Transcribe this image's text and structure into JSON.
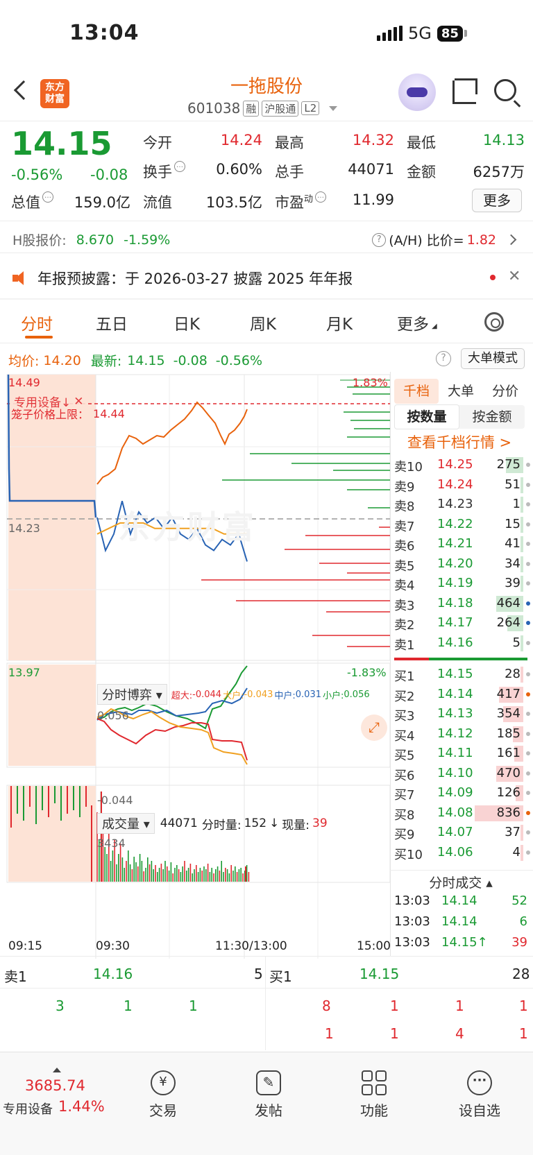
{
  "status": {
    "time": "13:04",
    "network": "5G",
    "battery": "85"
  },
  "header": {
    "logo_line1": "东方",
    "logo_line2": "财富",
    "name": "一拖股份",
    "code": "601038",
    "tags": [
      "融",
      "沪股通",
      "L2"
    ]
  },
  "quote": {
    "price": "14.15",
    "pct": "-0.56%",
    "chg": "-0.08",
    "open_label": "今开",
    "open": "14.24",
    "high_label": "最高",
    "high": "14.32",
    "low_label": "最低",
    "low": "14.13",
    "turnover_label": "换手",
    "turnover": "0.60%",
    "volume_label": "总手",
    "volume": "44071",
    "amount_label": "金额",
    "amount": "6257万",
    "mktcap_label": "总值",
    "mktcap": "159.0亿",
    "float_label": "流值",
    "float": "103.5亿",
    "pe_label": "市盈",
    "pe_sup": "动",
    "pe": "11.99",
    "more": "更多"
  },
  "hshare": {
    "label": "H股报价:",
    "price": "8.670",
    "pct": "-1.59%",
    "ah_label": "(A/H) 比价=",
    "ah_value": "1.82"
  },
  "notice": {
    "text": "年报预披露：于 2026-03-27 披露 2025 年年报",
    "close": "✕"
  },
  "tabs": [
    "分时",
    "五日",
    "日K",
    "周K",
    "月K",
    "更多"
  ],
  "avg_row": {
    "avg_label": "均价:",
    "avg": "14.20",
    "latest_label": "最新:",
    "latest": "14.15",
    "chg": "-0.08",
    "pct": "-0.56%",
    "help": "?",
    "big_order": "大单模式"
  },
  "chart": {
    "top_price": "14.49",
    "mid_price": "14.23",
    "bottom_price": "13.97",
    "top_pct": "1.83%",
    "bottom_pct": "-1.83%",
    "sector_tag": "专用设备↓",
    "sector_close": "✕",
    "limit_label": "笼子价格上限：",
    "limit_value": "14.44",
    "watermark": "东方财富",
    "bout_title": "分时博弈",
    "bout_super_label": "超大:",
    "bout_super": "-0.044",
    "bout_big_label": "大户:",
    "bout_big": "-0.043",
    "bout_mid_label": "中户:",
    "bout_mid": "0.031",
    "bout_small_label": "小户:",
    "bout_small": "0.056",
    "bout_top": "0.056",
    "bout_bottom": "-0.044",
    "vol_title": "成交量",
    "vol_total": "44071",
    "vol_min_label": "分时量:",
    "vol_min": "152",
    "vol_arrow": "↓",
    "vol_now_label": "现量:",
    "vol_now": "39",
    "vol_max": "3434",
    "times": [
      "09:15",
      "09:30",
      "11:30/13:00",
      "15:00"
    ]
  },
  "chart_data": {
    "type": "line",
    "series": [
      {
        "name": "",
        "values": [
          14.23,
          14.17,
          14.2,
          14.26,
          14.2,
          14.24,
          14.22,
          14.23,
          14.21,
          14.23,
          14.2,
          14.19,
          14.21,
          14.18,
          14.17,
          14.19,
          14.18,
          14.2,
          14.15
        ]
      },
      {
        "name": "",
        "values": [
          14.2,
          14.21,
          14.22,
          14.22,
          14.22,
          14.21,
          14.21,
          14.21,
          14.21,
          14.21,
          14.21,
          14.2,
          14.2,
          14.2
        ]
      }
    ],
    "ylim": [
      13.97,
      14.49
    ]
  },
  "orderbook": {
    "tabs": [
      "千档",
      "大单",
      "分价"
    ],
    "modes": [
      "按数量",
      "按金额"
    ],
    "link": "查看千档行情 >",
    "sell": [
      {
        "lv": "卖10",
        "p": "14.25",
        "q": "275",
        "c": "red",
        "frac": 0.35,
        "dot": "#bbb"
      },
      {
        "lv": "卖9",
        "p": "14.24",
        "q": "51",
        "c": "red",
        "frac": 0.06,
        "dot": "#bbb"
      },
      {
        "lv": "卖8",
        "p": "14.23",
        "q": "1",
        "c": "gray",
        "frac": 0.01,
        "dot": "#bbb"
      },
      {
        "lv": "卖7",
        "p": "14.22",
        "q": "15",
        "c": "green",
        "frac": 0.02,
        "dot": "#bbb"
      },
      {
        "lv": "卖6",
        "p": "14.21",
        "q": "41",
        "c": "green",
        "frac": 0.05,
        "dot": "#bbb"
      },
      {
        "lv": "卖5",
        "p": "14.20",
        "q": "34",
        "c": "green",
        "frac": 0.04,
        "dot": "#bbb"
      },
      {
        "lv": "卖4",
        "p": "14.19",
        "q": "39",
        "c": "green",
        "frac": 0.05,
        "dot": "#bbb"
      },
      {
        "lv": "卖3",
        "p": "14.18",
        "q": "464",
        "c": "green",
        "frac": 0.55,
        "dot": "#2863b4"
      },
      {
        "lv": "卖2",
        "p": "14.17",
        "q": "264",
        "c": "green",
        "frac": 0.33,
        "dot": "#2863b4"
      },
      {
        "lv": "卖1",
        "p": "14.16",
        "q": "5",
        "c": "green",
        "frac": 0.01,
        "dot": "#bbb"
      }
    ],
    "buy": [
      {
        "lv": "买1",
        "p": "14.15",
        "q": "28",
        "c": "green",
        "frac": 0.03,
        "dot": "#bbb"
      },
      {
        "lv": "买2",
        "p": "14.14",
        "q": "417",
        "c": "green",
        "frac": 0.5,
        "dot": "#e8620c"
      },
      {
        "lv": "买3",
        "p": "14.13",
        "q": "354",
        "c": "green",
        "frac": 0.42,
        "dot": "#bbb"
      },
      {
        "lv": "买4",
        "p": "14.12",
        "q": "185",
        "c": "green",
        "frac": 0.22,
        "dot": "#bbb"
      },
      {
        "lv": "买5",
        "p": "14.11",
        "q": "161",
        "c": "green",
        "frac": 0.19,
        "dot": "#bbb"
      },
      {
        "lv": "买6",
        "p": "14.10",
        "q": "470",
        "c": "green",
        "frac": 0.56,
        "dot": "#bbb"
      },
      {
        "lv": "买7",
        "p": "14.09",
        "q": "126",
        "c": "green",
        "frac": 0.15,
        "dot": "#bbb"
      },
      {
        "lv": "买8",
        "p": "14.08",
        "q": "836",
        "c": "green",
        "frac": 1.0,
        "dot": "#e8620c"
      },
      {
        "lv": "买9",
        "p": "14.07",
        "q": "37",
        "c": "green",
        "frac": 0.04,
        "dot": "#bbb"
      },
      {
        "lv": "买10",
        "p": "14.06",
        "q": "4",
        "c": "green",
        "frac": 0.01,
        "dot": "#bbb"
      }
    ],
    "trades_title": "分时成交",
    "trades": [
      {
        "t": "13:03",
        "p": "14.14",
        "v": "52",
        "pc": "green",
        "vc": "green"
      },
      {
        "t": "13:03",
        "p": "14.14",
        "v": "6",
        "pc": "green",
        "vc": "green"
      },
      {
        "t": "13:03",
        "p": "14.15↑",
        "v": "39",
        "pc": "green",
        "vc": "red"
      }
    ]
  },
  "level1": {
    "sell_label": "卖1",
    "sell_price": "14.16",
    "sell_qty": "5",
    "buy_label": "买1",
    "buy_price": "14.15",
    "buy_qty": "28",
    "sell_queue": [
      "3",
      "1",
      "1"
    ],
    "buy_queue_1": [
      "8",
      "1",
      "1",
      "1"
    ],
    "buy_queue_2": [
      "1",
      "1",
      "4",
      "1"
    ]
  },
  "nav": {
    "index_value": "3685.74",
    "index_name": "专用设备",
    "index_pct": "1.44%",
    "trade": "交易",
    "post": "发帖",
    "func": "功能",
    "watch": "设自选"
  }
}
